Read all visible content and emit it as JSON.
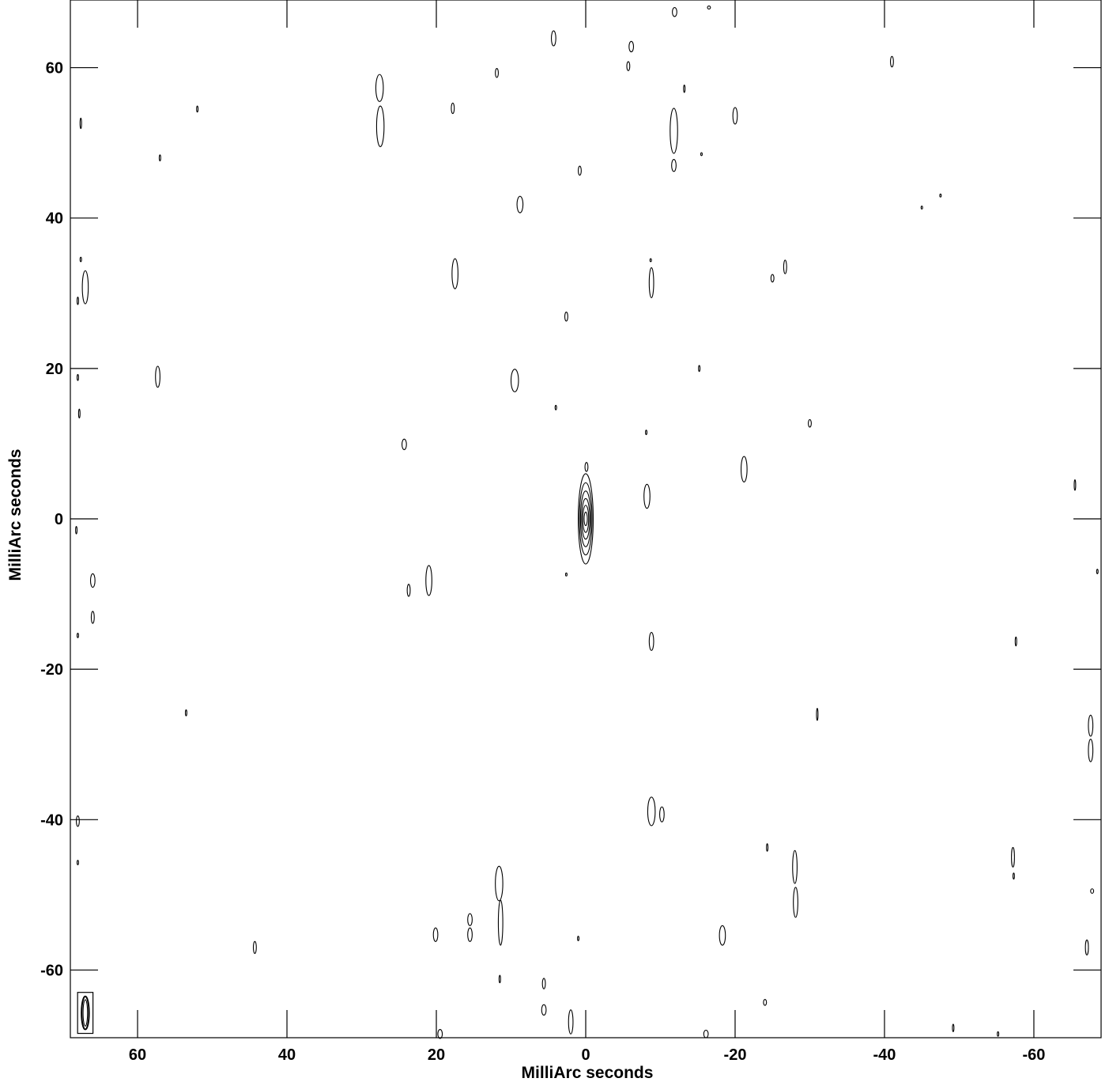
{
  "chart_data": {
    "type": "contour",
    "xlabel": "MilliArc seconds",
    "ylabel": "MilliArc seconds",
    "xlim": [
      69,
      -69
    ],
    "ylim": [
      -69,
      69
    ],
    "x_ticks": [
      60,
      40,
      20,
      0,
      -20,
      -40,
      -60
    ],
    "y_ticks": [
      60,
      40,
      20,
      0,
      -20,
      -40,
      -60
    ],
    "x_tick_labels": [
      "60",
      "40",
      "20",
      "0",
      "-20",
      "-40",
      "-60"
    ],
    "y_tick_labels": [
      "60",
      "40",
      "20",
      "0",
      "-20",
      "-40",
      "-60"
    ],
    "central_source": {
      "x": 0,
      "y": 0,
      "contours": [
        {
          "rx": 1.0,
          "ry": 6.0
        },
        {
          "rx": 0.85,
          "ry": 4.8
        },
        {
          "rx": 0.7,
          "ry": 3.7
        },
        {
          "rx": 0.55,
          "ry": 2.7
        },
        {
          "rx": 0.4,
          "ry": 1.8
        },
        {
          "rx": 0.22,
          "ry": 0.9
        }
      ]
    },
    "beam": {
      "x": 67.0,
      "y": -65.7,
      "rx": 0.5,
      "ry": 2.2
    },
    "blobs": [
      [
        27.6,
        57.3,
        0.5,
        1.8
      ],
      [
        27.5,
        52.2,
        0.5,
        2.7
      ],
      [
        17.8,
        54.6,
        0.2,
        0.7
      ],
      [
        11.9,
        59.3,
        0.2,
        0.6
      ],
      [
        4.3,
        63.9,
        0.3,
        1.0
      ],
      [
        -6.1,
        62.8,
        0.3,
        0.7
      ],
      [
        -5.7,
        60.2,
        0.2,
        0.6
      ],
      [
        -11.9,
        67.4,
        0.3,
        0.6
      ],
      [
        -13.2,
        57.2,
        0.1,
        0.5
      ],
      [
        -11.8,
        51.6,
        0.5,
        3.0
      ],
      [
        -11.8,
        47.0,
        0.3,
        0.8
      ],
      [
        -20.0,
        53.6,
        0.3,
        1.1
      ],
      [
        -41.0,
        60.8,
        0.2,
        0.7
      ],
      [
        -15.5,
        48.5,
        0.1,
        0.2
      ],
      [
        0.8,
        46.3,
        0.2,
        0.6
      ],
      [
        8.8,
        41.8,
        0.4,
        1.1
      ],
      [
        67.6,
        52.6,
        0.1,
        0.7
      ],
      [
        52.0,
        54.5,
        0.1,
        0.4
      ],
      [
        57.0,
        48.0,
        0.1,
        0.4
      ],
      [
        -47.5,
        43.0,
        0.1,
        0.2
      ],
      [
        -45.0,
        41.4,
        0.1,
        0.2
      ],
      [
        17.5,
        32.6,
        0.4,
        2.0
      ],
      [
        -8.8,
        31.4,
        0.3,
        2.0
      ],
      [
        -8.7,
        34.4,
        0.1,
        0.2
      ],
      [
        -25.0,
        32.0,
        0.2,
        0.5
      ],
      [
        -26.7,
        33.5,
        0.2,
        0.9
      ],
      [
        2.6,
        26.9,
        0.2,
        0.6
      ],
      [
        67.0,
        30.8,
        0.4,
        2.2
      ],
      [
        68.0,
        29.0,
        0.1,
        0.5
      ],
      [
        67.6,
        34.5,
        0.1,
        0.3
      ],
      [
        57.3,
        18.9,
        0.3,
        1.4
      ],
      [
        9.5,
        18.4,
        0.5,
        1.5
      ],
      [
        -15.2,
        20.0,
        0.1,
        0.4
      ],
      [
        4.0,
        14.8,
        0.1,
        0.3
      ],
      [
        24.3,
        9.9,
        0.3,
        0.7
      ],
      [
        -8.1,
        11.5,
        0.1,
        0.3
      ],
      [
        -30.0,
        12.7,
        0.2,
        0.5
      ],
      [
        68.0,
        18.8,
        0.1,
        0.4
      ],
      [
        67.8,
        14.0,
        0.1,
        0.6
      ],
      [
        -0.1,
        6.9,
        0.2,
        0.6
      ],
      [
        -21.2,
        6.6,
        0.4,
        1.7
      ],
      [
        -8.2,
        3.0,
        0.4,
        1.6
      ],
      [
        -65.5,
        4.5,
        0.1,
        0.7
      ],
      [
        2.6,
        -7.4,
        0.1,
        0.2
      ],
      [
        21.0,
        -8.2,
        0.4,
        2.0
      ],
      [
        23.7,
        -9.5,
        0.2,
        0.8
      ],
      [
        66.0,
        -8.2,
        0.3,
        0.9
      ],
      [
        66.0,
        -13.1,
        0.2,
        0.8
      ],
      [
        68.2,
        -1.5,
        0.1,
        0.5
      ],
      [
        -8.8,
        -16.3,
        0.3,
        1.2
      ],
      [
        -57.6,
        -16.3,
        0.1,
        0.6
      ],
      [
        -68.5,
        -7.0,
        0.1,
        0.3
      ],
      [
        68.0,
        -15.5,
        0.1,
        0.3
      ],
      [
        53.5,
        -25.8,
        0.1,
        0.4
      ],
      [
        -31.0,
        -26.0,
        0.1,
        0.8
      ],
      [
        -67.6,
        -27.5,
        0.3,
        1.4
      ],
      [
        -67.6,
        -30.8,
        0.3,
        1.5
      ],
      [
        -8.8,
        -38.9,
        0.5,
        1.9
      ],
      [
        -10.2,
        -39.3,
        0.3,
        1.0
      ],
      [
        68.0,
        -40.2,
        0.2,
        0.7
      ],
      [
        68.0,
        -45.7,
        0.1,
        0.3
      ],
      [
        -24.3,
        -43.7,
        0.1,
        0.5
      ],
      [
        -28.0,
        -46.3,
        0.3,
        2.2
      ],
      [
        -28.1,
        -51.0,
        0.3,
        2.0
      ],
      [
        -57.2,
        -45.0,
        0.2,
        1.3
      ],
      [
        -57.3,
        -47.5,
        0.1,
        0.4
      ],
      [
        -67.8,
        -49.5,
        0.2,
        0.3
      ],
      [
        11.6,
        -48.5,
        0.5,
        2.3
      ],
      [
        11.4,
        -53.7,
        0.3,
        3.0
      ],
      [
        15.5,
        -53.3,
        0.3,
        0.8
      ],
      [
        15.5,
        -55.3,
        0.3,
        0.9
      ],
      [
        20.1,
        -55.3,
        0.3,
        0.9
      ],
      [
        44.3,
        -57.0,
        0.2,
        0.8
      ],
      [
        1.0,
        -55.8,
        0.1,
        0.3
      ],
      [
        -18.3,
        -55.4,
        0.4,
        1.3
      ],
      [
        -67.1,
        -57.0,
        0.2,
        1.0
      ],
      [
        11.5,
        -61.2,
        0.1,
        0.5
      ],
      [
        5.6,
        -61.8,
        0.2,
        0.7
      ],
      [
        5.6,
        -65.3,
        0.3,
        0.7
      ],
      [
        2.0,
        -66.9,
        0.3,
        1.6
      ],
      [
        19.5,
        -68.5,
        0.3,
        0.6
      ],
      [
        -24.0,
        -64.3,
        0.2,
        0.4
      ],
      [
        -16.1,
        -68.5,
        0.3,
        0.5
      ],
      [
        -49.2,
        -67.7,
        0.1,
        0.5
      ],
      [
        -55.2,
        -68.5,
        0.1,
        0.3
      ],
      [
        -16.5,
        68.0,
        0.2,
        0.2
      ]
    ]
  }
}
